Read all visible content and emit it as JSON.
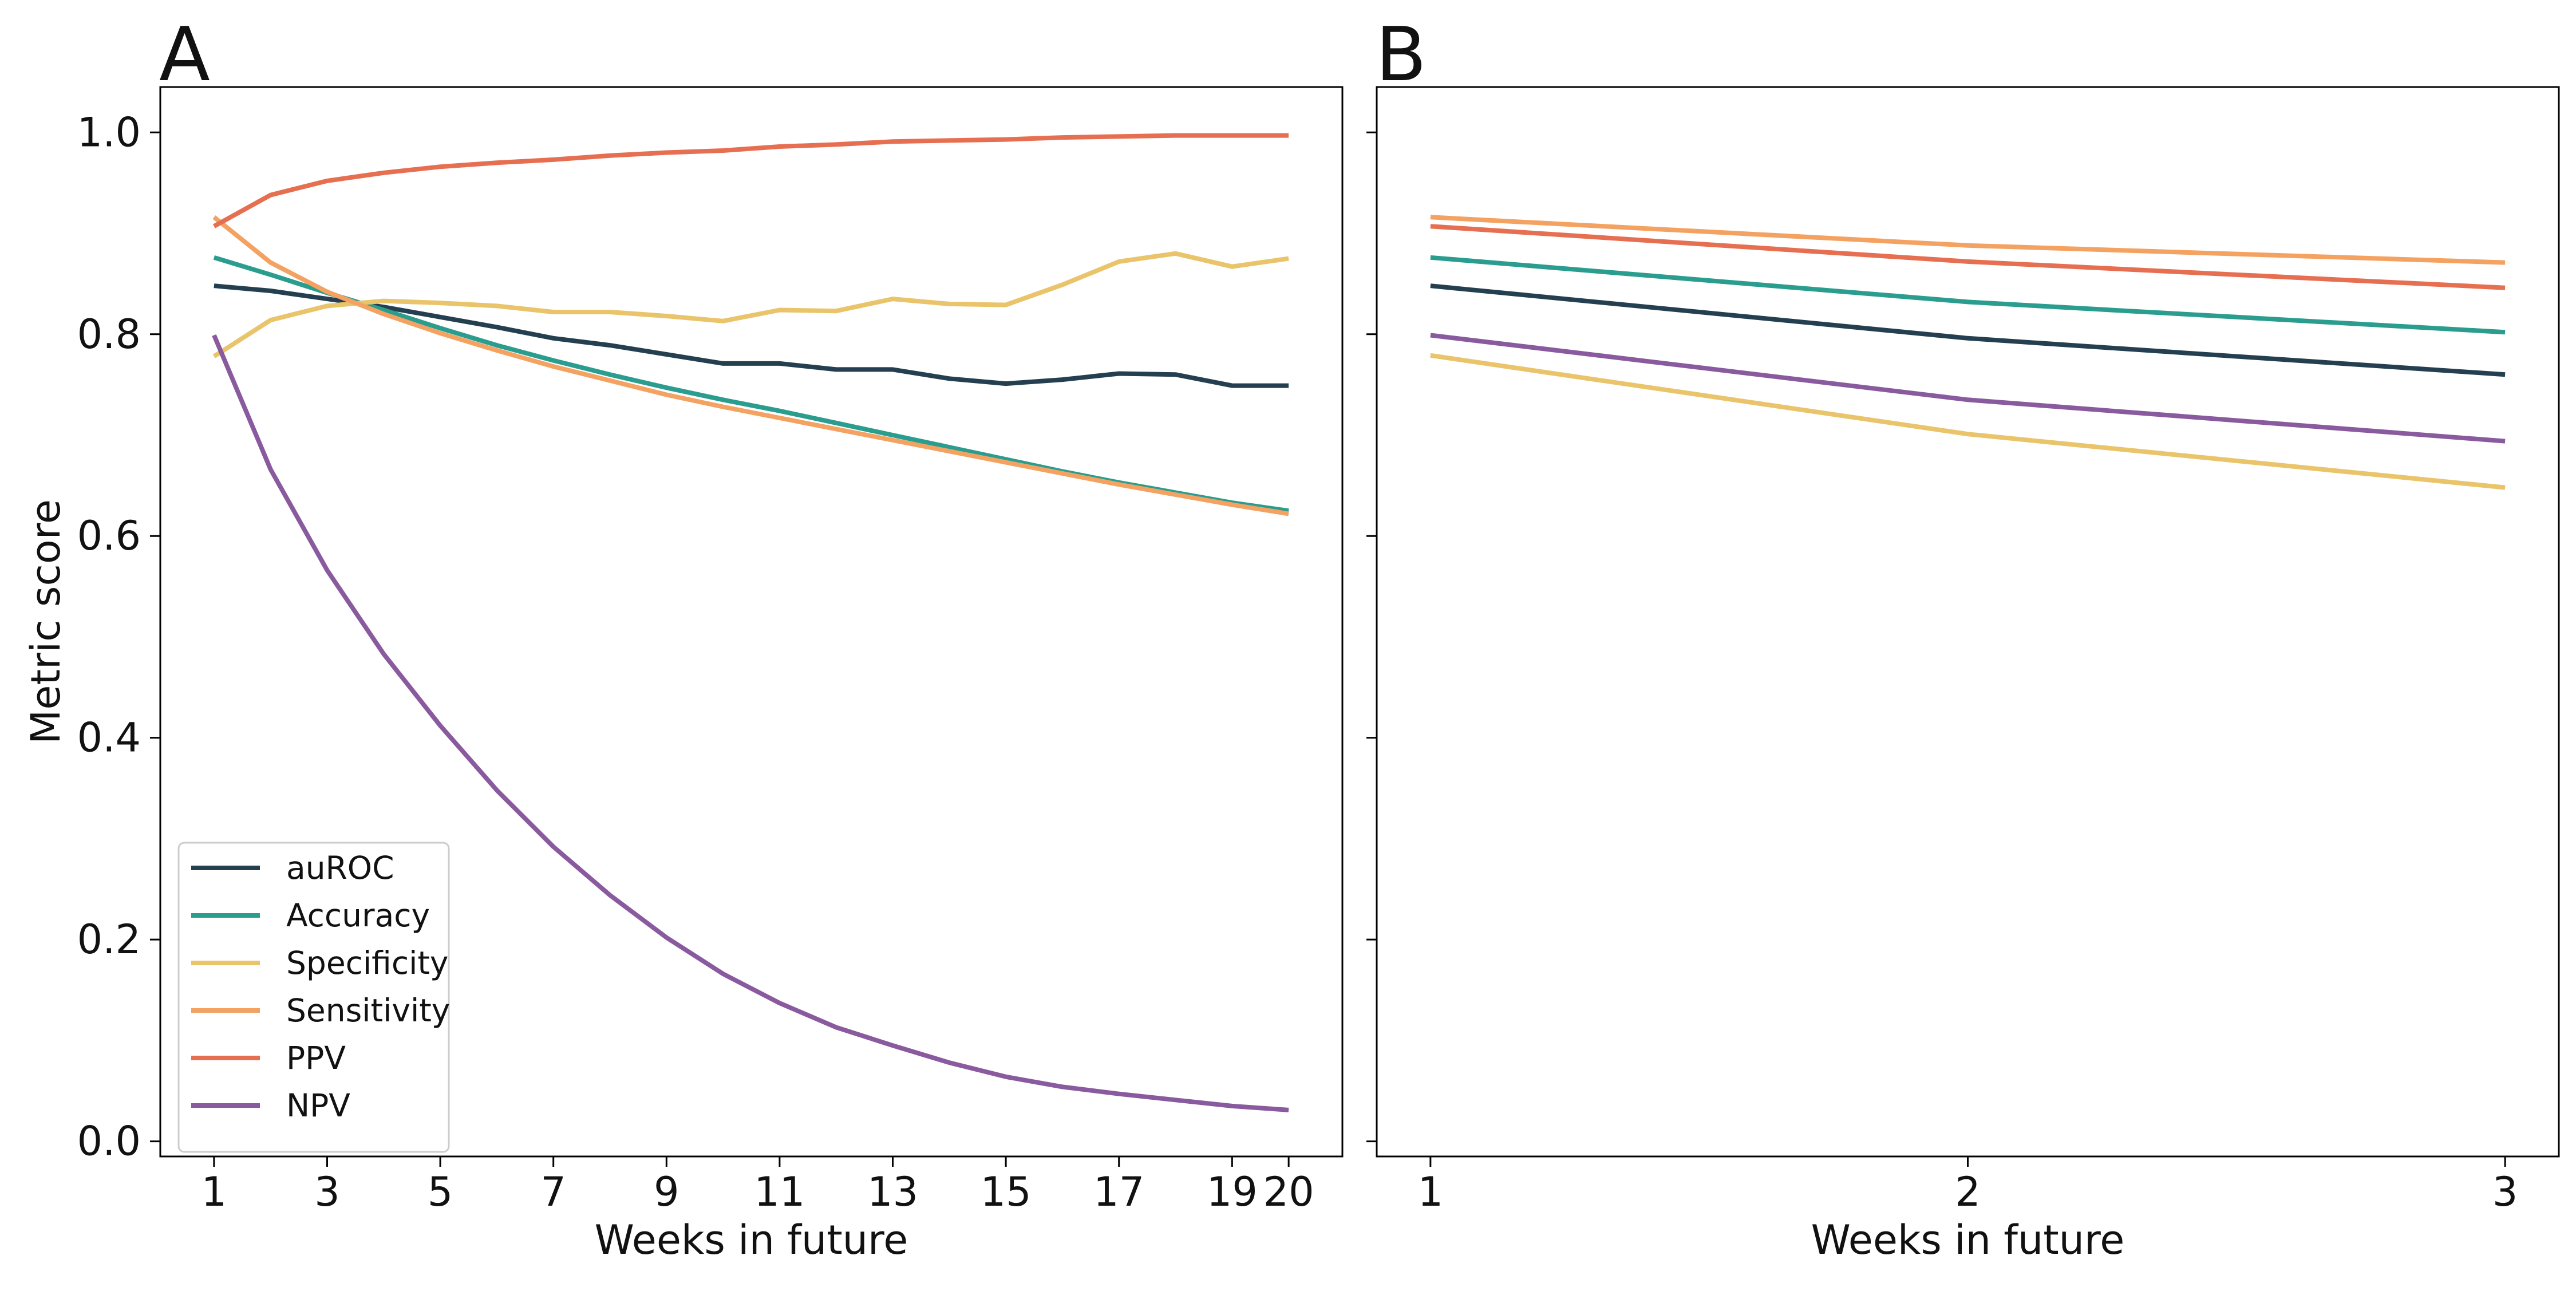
{
  "chart_data": [
    {
      "panel_label": "A",
      "type": "line",
      "xlabel": "Weeks in future",
      "ylabel": "Metric score",
      "x": [
        1,
        2,
        3,
        4,
        5,
        6,
        7,
        8,
        9,
        10,
        11,
        12,
        13,
        14,
        15,
        16,
        17,
        18,
        19,
        20
      ],
      "xticks": [
        1,
        3,
        5,
        7,
        9,
        11,
        13,
        15,
        17,
        19,
        20
      ],
      "xlim": [
        0.05,
        20.95
      ],
      "ylim": [
        -0.015,
        1.045
      ],
      "yticks": [
        0.0,
        0.2,
        0.4,
        0.6,
        0.8,
        1.0
      ],
      "ytick_labels": [
        "0.0",
        "0.2",
        "0.4",
        "0.6",
        "0.8",
        "1.0"
      ],
      "grid": false,
      "legend": "lower-left",
      "series": [
        {
          "name": "auROC",
          "color": "#243f4f",
          "values": [
            0.848,
            0.843,
            0.835,
            0.827,
            0.817,
            0.807,
            0.796,
            0.789,
            0.78,
            0.771,
            0.771,
            0.765,
            0.765,
            0.756,
            0.751,
            0.755,
            0.761,
            0.76,
            0.749,
            0.749
          ]
        },
        {
          "name": "Accuracy",
          "color": "#2a9d8f",
          "values": [
            0.876,
            0.859,
            0.841,
            0.824,
            0.806,
            0.789,
            0.774,
            0.76,
            0.747,
            0.735,
            0.724,
            0.712,
            0.7,
            0.688,
            0.676,
            0.664,
            0.653,
            0.643,
            0.633,
            0.625
          ]
        },
        {
          "name": "Specificity",
          "color": "#e9c46a",
          "values": [
            0.778,
            0.814,
            0.828,
            0.833,
            0.831,
            0.828,
            0.822,
            0.822,
            0.818,
            0.813,
            0.824,
            0.823,
            0.835,
            0.83,
            0.829,
            0.849,
            0.872,
            0.88,
            0.867,
            0.875
          ]
        },
        {
          "name": "Sensitivity",
          "color": "#f4a261",
          "values": [
            0.916,
            0.871,
            0.842,
            0.82,
            0.801,
            0.784,
            0.768,
            0.754,
            0.74,
            0.728,
            0.717,
            0.706,
            0.695,
            0.684,
            0.673,
            0.662,
            0.651,
            0.641,
            0.631,
            0.622
          ]
        },
        {
          "name": "PPV",
          "color": "#e76f51",
          "values": [
            0.907,
            0.938,
            0.952,
            0.96,
            0.966,
            0.97,
            0.973,
            0.977,
            0.98,
            0.982,
            0.986,
            0.988,
            0.991,
            0.992,
            0.993,
            0.995,
            0.996,
            0.997,
            0.997,
            0.997
          ]
        },
        {
          "name": "NPV",
          "color": "#8a5a9f",
          "values": [
            0.799,
            0.666,
            0.566,
            0.483,
            0.412,
            0.348,
            0.292,
            0.244,
            0.202,
            0.166,
            0.137,
            0.113,
            0.095,
            0.078,
            0.064,
            0.054,
            0.047,
            0.041,
            0.035,
            0.031
          ]
        }
      ]
    },
    {
      "panel_label": "B",
      "type": "line",
      "xlabel": "Weeks in future",
      "x": [
        1,
        2,
        3
      ],
      "xticks": [
        1,
        2,
        3
      ],
      "xlim": [
        0.9,
        3.1
      ],
      "ylim": [
        -0.015,
        1.045
      ],
      "yticks": [
        0.0,
        0.2,
        0.4,
        0.6,
        0.8,
        1.0
      ],
      "grid": false,
      "series": [
        {
          "name": "auROC",
          "color": "#243f4f",
          "values": [
            0.848,
            0.796,
            0.76
          ]
        },
        {
          "name": "Accuracy",
          "color": "#2a9d8f",
          "values": [
            0.876,
            0.832,
            0.802
          ]
        },
        {
          "name": "Specificity",
          "color": "#e9c46a",
          "values": [
            0.779,
            0.701,
            0.648
          ]
        },
        {
          "name": "Sensitivity",
          "color": "#f4a261",
          "values": [
            0.916,
            0.888,
            0.871
          ]
        },
        {
          "name": "PPV",
          "color": "#e76f51",
          "values": [
            0.907,
            0.872,
            0.846
          ]
        },
        {
          "name": "NPV",
          "color": "#8a5a9f",
          "values": [
            0.799,
            0.735,
            0.694
          ]
        }
      ]
    }
  ]
}
